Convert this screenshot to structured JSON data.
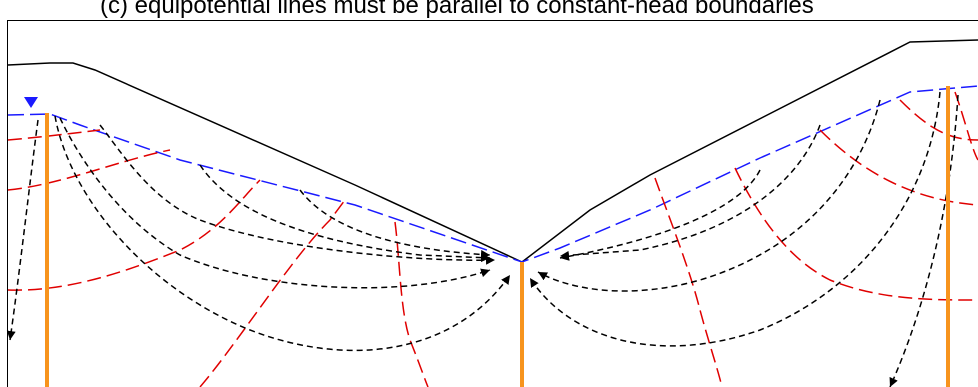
{
  "caption": "(c) equipotential lines must be parallel to constant-head boundaries",
  "colors": {
    "ground_surface": "#000000",
    "water_table": "#1a1aff",
    "flow_lines": "#000000",
    "equipotential_lines": "#e00000",
    "wells": "#f7941d",
    "water_table_marker": "#1a1aff"
  },
  "icons": {
    "water_table_marker": "inverted-triangle-icon"
  }
}
